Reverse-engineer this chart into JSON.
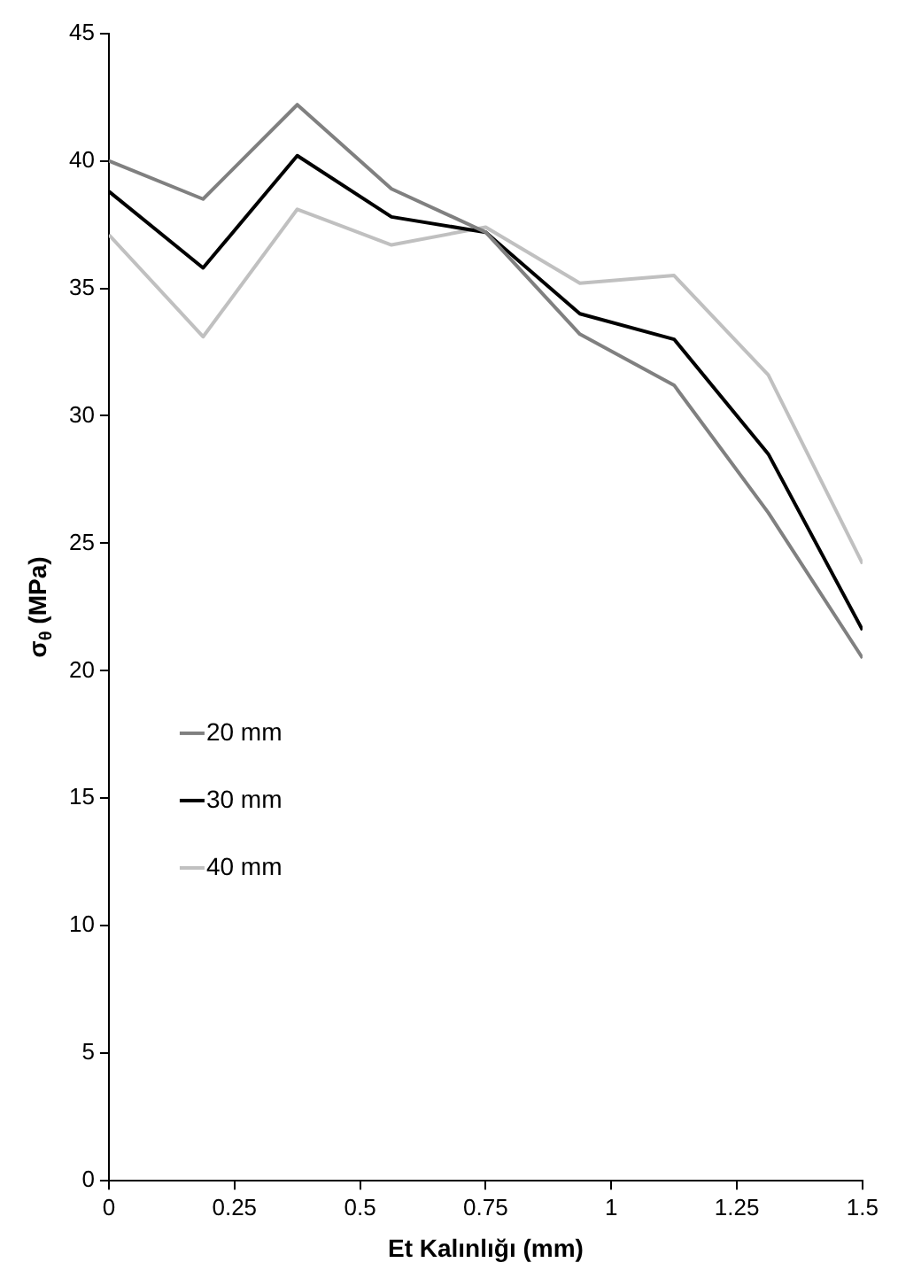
{
  "chart_data": {
    "type": "line",
    "xlabel": "Et Kalınlığı (mm)",
    "ylabel": "σ$_{θ}$ (MPa)",
    "x": [
      0,
      0.1875,
      0.375,
      0.5625,
      0.75,
      0.9375,
      1.125,
      1.3125,
      1.5
    ],
    "series": [
      {
        "name": "20 mm",
        "color": "#808080",
        "values": [
          40,
          38.5,
          42.2,
          38.9,
          37.2,
          33.2,
          31.2,
          26.2,
          20.5
        ]
      },
      {
        "name": "30 mm",
        "color": "#000000",
        "values": [
          38.8,
          35.8,
          40.2,
          37.8,
          37.2,
          34.0,
          33.0,
          28.5,
          21.6
        ]
      },
      {
        "name": "40 mm",
        "color": "#c0c0c0",
        "values": [
          37.1,
          33.1,
          38.1,
          36.7,
          37.4,
          35.2,
          35.5,
          31.6,
          24.2
        ]
      }
    ],
    "xlim": [
      0,
      1.5
    ],
    "xticks": [
      0,
      0.25,
      0.5,
      0.75,
      1,
      1.25,
      1.5
    ],
    "ylim": [
      0,
      45
    ],
    "yticks": [
      0,
      5,
      10,
      15,
      20,
      25,
      30,
      35,
      40,
      45
    ],
    "grid": false,
    "legend": "left",
    "marker": "none",
    "line_style": "solid"
  }
}
